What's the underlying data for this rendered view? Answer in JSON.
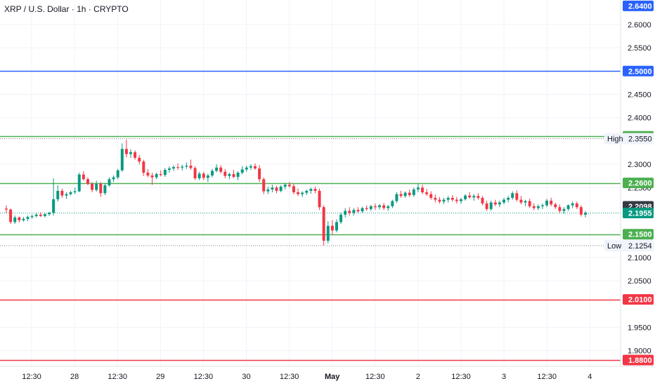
{
  "header": {
    "symbol_title": "XRP / U.S. Dollar · 1h · CRYPTO"
  },
  "chart_data": {
    "type": "candlestick",
    "title": "XRP / U.S. Dollar · 1h · CRYPTO",
    "ylim": [
      1.88,
      2.642
    ],
    "y_ticks": [
      "2.6000",
      "2.5500",
      "2.4500",
      "2.4000",
      "2.3000",
      "2.2500",
      "2.1000",
      "2.0500",
      "1.9500",
      "1.9000"
    ],
    "x_ticks": [
      "12:30",
      "28",
      "12:30",
      "29",
      "12:30",
      "30",
      "12:30",
      "May",
      "12:30",
      "2",
      "12:30",
      "3",
      "12:30",
      "4"
    ],
    "grid": true,
    "horizontal_levels": [
      {
        "value": 2.64,
        "label": "2.6400",
        "color": "#2962ff",
        "line": false
      },
      {
        "value": 2.5,
        "label": "2.5000",
        "color": "#2962ff",
        "line": true
      },
      {
        "value": 2.36,
        "label": "2.3600",
        "color": "#4caf50",
        "line": true
      },
      {
        "value": 2.26,
        "label": "2.2600",
        "color": "#4caf50",
        "line": true
      },
      {
        "value": 2.15,
        "label": "2.1500",
        "color": "#4caf50",
        "line": true
      },
      {
        "value": 2.01,
        "label": "2.0100",
        "color": "#f23645",
        "line": true
      },
      {
        "value": 1.88,
        "label": "1.8800",
        "color": "#f23645",
        "line": true
      }
    ],
    "high": {
      "label": "High",
      "value": "2.3550"
    },
    "low": {
      "label": "Low",
      "value": "2.1254"
    },
    "last_price": "2.1955",
    "prev_close": "2.2098",
    "candles": [
      [
        2.205,
        2.212,
        2.195,
        2.203
      ],
      [
        2.203,
        2.205,
        2.172,
        2.176
      ],
      [
        2.176,
        2.19,
        2.172,
        2.186
      ],
      [
        2.186,
        2.188,
        2.175,
        2.18
      ],
      [
        2.18,
        2.187,
        2.177,
        2.183
      ],
      [
        2.183,
        2.19,
        2.178,
        2.187
      ],
      [
        2.187,
        2.192,
        2.183,
        2.189
      ],
      [
        2.189,
        2.195,
        2.186,
        2.192
      ],
      [
        2.192,
        2.197,
        2.187,
        2.189
      ],
      [
        2.189,
        2.195,
        2.186,
        2.193
      ],
      [
        2.193,
        2.198,
        2.189,
        2.196
      ],
      [
        2.196,
        2.27,
        2.19,
        2.225
      ],
      [
        2.225,
        2.255,
        2.22,
        2.243
      ],
      [
        2.243,
        2.248,
        2.228,
        2.233
      ],
      [
        2.233,
        2.24,
        2.226,
        2.236
      ],
      [
        2.236,
        2.243,
        2.233,
        2.24
      ],
      [
        2.24,
        2.25,
        2.236,
        2.242
      ],
      [
        2.242,
        2.282,
        2.24,
        2.278
      ],
      [
        2.278,
        2.285,
        2.265,
        2.268
      ],
      [
        2.268,
        2.272,
        2.255,
        2.258
      ],
      [
        2.258,
        2.262,
        2.24,
        2.245
      ],
      [
        2.245,
        2.265,
        2.241,
        2.258
      ],
      [
        2.258,
        2.262,
        2.23,
        2.238
      ],
      [
        2.238,
        2.26,
        2.234,
        2.255
      ],
      [
        2.255,
        2.272,
        2.252,
        2.268
      ],
      [
        2.268,
        2.276,
        2.262,
        2.272
      ],
      [
        2.272,
        2.29,
        2.268,
        2.287
      ],
      [
        2.287,
        2.345,
        2.284,
        2.333
      ],
      [
        2.333,
        2.353,
        2.315,
        2.322
      ],
      [
        2.322,
        2.332,
        2.314,
        2.326
      ],
      [
        2.326,
        2.33,
        2.31,
        2.314
      ],
      [
        2.314,
        2.32,
        2.3,
        2.306
      ],
      [
        2.306,
        2.31,
        2.275,
        2.282
      ],
      [
        2.282,
        2.29,
        2.272,
        2.276
      ],
      [
        2.276,
        2.282,
        2.256,
        2.272
      ],
      [
        2.272,
        2.282,
        2.268,
        2.279
      ],
      [
        2.279,
        2.287,
        2.274,
        2.277
      ],
      [
        2.277,
        2.292,
        2.273,
        2.288
      ],
      [
        2.288,
        2.296,
        2.282,
        2.291
      ],
      [
        2.291,
        2.298,
        2.286,
        2.294
      ],
      [
        2.294,
        2.302,
        2.288,
        2.293
      ],
      [
        2.293,
        2.299,
        2.287,
        2.295
      ],
      [
        2.295,
        2.304,
        2.29,
        2.297
      ],
      [
        2.297,
        2.31,
        2.288,
        2.292
      ],
      [
        2.292,
        2.296,
        2.266,
        2.27
      ],
      [
        2.27,
        2.284,
        2.266,
        2.28
      ],
      [
        2.28,
        2.284,
        2.266,
        2.271
      ],
      [
        2.271,
        2.28,
        2.262,
        2.276
      ],
      [
        2.276,
        2.29,
        2.272,
        2.286
      ],
      [
        2.286,
        2.3,
        2.283,
        2.293
      ],
      [
        2.293,
        2.298,
        2.28,
        2.284
      ],
      [
        2.284,
        2.29,
        2.27,
        2.275
      ],
      [
        2.275,
        2.282,
        2.268,
        2.279
      ],
      [
        2.279,
        2.288,
        2.27,
        2.273
      ],
      [
        2.273,
        2.285,
        2.266,
        2.282
      ],
      [
        2.282,
        2.296,
        2.278,
        2.289
      ],
      [
        2.289,
        2.297,
        2.284,
        2.293
      ],
      [
        2.293,
        2.3,
        2.288,
        2.296
      ],
      [
        2.296,
        2.302,
        2.288,
        2.291
      ],
      [
        2.291,
        2.298,
        2.262,
        2.268
      ],
      [
        2.268,
        2.272,
        2.236,
        2.242
      ],
      [
        2.242,
        2.252,
        2.236,
        2.246
      ],
      [
        2.246,
        2.256,
        2.24,
        2.25
      ],
      [
        2.25,
        2.254,
        2.238,
        2.243
      ],
      [
        2.243,
        2.255,
        2.24,
        2.252
      ],
      [
        2.252,
        2.26,
        2.246,
        2.256
      ],
      [
        2.256,
        2.262,
        2.25,
        2.253
      ],
      [
        2.253,
        2.258,
        2.236,
        2.24
      ],
      [
        2.24,
        2.248,
        2.232,
        2.236
      ],
      [
        2.236,
        2.242,
        2.23,
        2.239
      ],
      [
        2.239,
        2.246,
        2.234,
        2.243
      ],
      [
        2.243,
        2.25,
        2.237,
        2.247
      ],
      [
        2.247,
        2.252,
        2.238,
        2.243
      ],
      [
        2.243,
        2.248,
        2.202,
        2.208
      ],
      [
        2.208,
        2.212,
        2.126,
        2.136
      ],
      [
        2.136,
        2.178,
        2.13,
        2.168
      ],
      [
        2.168,
        2.18,
        2.15,
        2.158
      ],
      [
        2.158,
        2.182,
        2.154,
        2.176
      ],
      [
        2.176,
        2.196,
        2.172,
        2.192
      ],
      [
        2.192,
        2.206,
        2.186,
        2.2
      ],
      [
        2.2,
        2.208,
        2.19,
        2.196
      ],
      [
        2.196,
        2.206,
        2.19,
        2.202
      ],
      [
        2.202,
        2.208,
        2.196,
        2.199
      ],
      [
        2.199,
        2.209,
        2.196,
        2.206
      ],
      [
        2.206,
        2.212,
        2.2,
        2.204
      ],
      [
        2.204,
        2.213,
        2.2,
        2.21
      ],
      [
        2.21,
        2.216,
        2.202,
        2.208
      ],
      [
        2.208,
        2.215,
        2.203,
        2.212
      ],
      [
        2.212,
        2.217,
        2.202,
        2.206
      ],
      [
        2.206,
        2.213,
        2.2,
        2.21
      ],
      [
        2.21,
        2.224,
        2.206,
        2.221
      ],
      [
        2.221,
        2.24,
        2.217,
        2.236
      ],
      [
        2.236,
        2.243,
        2.228,
        2.232
      ],
      [
        2.232,
        2.242,
        2.228,
        2.239
      ],
      [
        2.239,
        2.246,
        2.23,
        2.234
      ],
      [
        2.234,
        2.25,
        2.23,
        2.246
      ],
      [
        2.246,
        2.258,
        2.24,
        2.25
      ],
      [
        2.25,
        2.256,
        2.236,
        2.24
      ],
      [
        2.24,
        2.247,
        2.232,
        2.236
      ],
      [
        2.236,
        2.242,
        2.224,
        2.228
      ],
      [
        2.228,
        2.235,
        2.218,
        2.224
      ],
      [
        2.224,
        2.23,
        2.216,
        2.22
      ],
      [
        2.22,
        2.228,
        2.215,
        2.224
      ],
      [
        2.224,
        2.232,
        2.218,
        2.228
      ],
      [
        2.228,
        2.234,
        2.22,
        2.224
      ],
      [
        2.224,
        2.23,
        2.216,
        2.221
      ],
      [
        2.221,
        2.228,
        2.215,
        2.225
      ],
      [
        2.225,
        2.236,
        2.222,
        2.233
      ],
      [
        2.233,
        2.24,
        2.226,
        2.229
      ],
      [
        2.229,
        2.236,
        2.222,
        2.232
      ],
      [
        2.232,
        2.238,
        2.224,
        2.228
      ],
      [
        2.228,
        2.232,
        2.212,
        2.216
      ],
      [
        2.216,
        2.222,
        2.2,
        2.204
      ],
      [
        2.204,
        2.222,
        2.2,
        2.218
      ],
      [
        2.218,
        2.224,
        2.21,
        2.214
      ],
      [
        2.214,
        2.222,
        2.208,
        2.218
      ],
      [
        2.218,
        2.228,
        2.214,
        2.224
      ],
      [
        2.224,
        2.232,
        2.218,
        2.228
      ],
      [
        2.228,
        2.242,
        2.224,
        2.238
      ],
      [
        2.238,
        2.244,
        2.22,
        2.224
      ],
      [
        2.224,
        2.232,
        2.214,
        2.218
      ],
      [
        2.218,
        2.224,
        2.21,
        2.221
      ],
      [
        2.221,
        2.226,
        2.206,
        2.21
      ],
      [
        2.21,
        2.216,
        2.202,
        2.206
      ],
      [
        2.206,
        2.214,
        2.202,
        2.21
      ],
      [
        2.21,
        2.216,
        2.204,
        2.212
      ],
      [
        2.212,
        2.226,
        2.208,
        2.222
      ],
      [
        2.222,
        2.228,
        2.21,
        2.214
      ],
      [
        2.214,
        2.218,
        2.204,
        2.208
      ],
      [
        2.208,
        2.214,
        2.196,
        2.2
      ],
      [
        2.2,
        2.208,
        2.194,
        2.204
      ],
      [
        2.204,
        2.214,
        2.2,
        2.212
      ],
      [
        2.212,
        2.22,
        2.206,
        2.216
      ],
      [
        2.216,
        2.22,
        2.204,
        2.208
      ],
      [
        2.208,
        2.212,
        2.188,
        2.192
      ],
      [
        2.192,
        2.2,
        2.186,
        2.196
      ]
    ]
  }
}
